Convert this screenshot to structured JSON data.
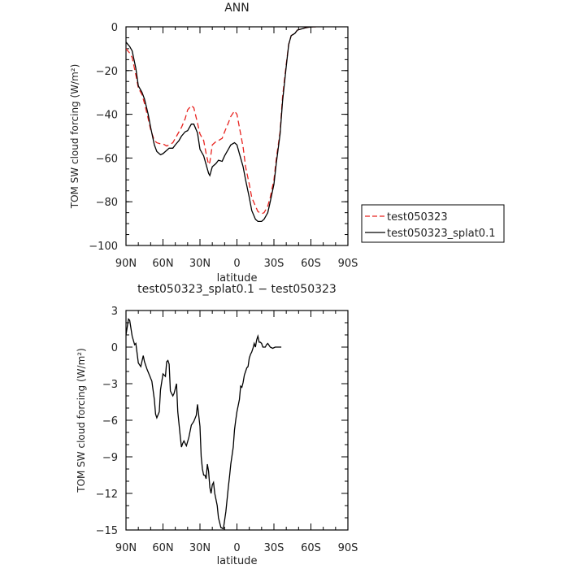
{
  "chart_data": [
    {
      "type": "line",
      "title": "ANN",
      "xlabel": "latitude",
      "ylabel": "TOM SW cloud forcing (W/m²)",
      "xlim": [
        90,
        -90
      ],
      "ylim": [
        -100,
        0
      ],
      "xticks": [
        {
          "value": 90,
          "label": "90N"
        },
        {
          "value": 60,
          "label": "60N"
        },
        {
          "value": 30,
          "label": "30N"
        },
        {
          "value": 0,
          "label": "0"
        },
        {
          "value": -30,
          "label": "30S"
        },
        {
          "value": -60,
          "label": "60S"
        },
        {
          "value": -90,
          "label": "90S"
        }
      ],
      "yticks": [
        {
          "value": 0,
          "label": "0"
        },
        {
          "value": -20,
          "label": "−20"
        },
        {
          "value": -40,
          "label": "−40"
        },
        {
          "value": -60,
          "label": "−60"
        },
        {
          "value": -80,
          "label": "−80"
        },
        {
          "value": -100,
          "label": "−100"
        }
      ],
      "legend_position": "right",
      "series": [
        {
          "name": "test050323",
          "color": "#e8231f",
          "dash": "dashed",
          "points": [
            [
              90,
              -10
            ],
            [
              87,
              -12
            ],
            [
              85,
              -14
            ],
            [
              82,
              -22
            ],
            [
              80,
              -28
            ],
            [
              77,
              -31
            ],
            [
              75,
              -35
            ],
            [
              72,
              -42
            ],
            [
              70,
              -47
            ],
            [
              67,
              -52
            ],
            [
              65,
              -53
            ],
            [
              62,
              -53.5
            ],
            [
              60,
              -53.5
            ],
            [
              57,
              -54.5
            ],
            [
              55,
              -54
            ],
            [
              52,
              -53
            ],
            [
              50,
              -51
            ],
            [
              47,
              -48
            ],
            [
              45,
              -46
            ],
            [
              42,
              -42
            ],
            [
              40,
              -38
            ],
            [
              37,
              -36
            ],
            [
              35,
              -37
            ],
            [
              32,
              -44
            ],
            [
              30,
              -49
            ],
            [
              27,
              -52
            ],
            [
              25,
              -58
            ],
            [
              23,
              -63
            ],
            [
              22,
              -62
            ],
            [
              20,
              -54
            ],
            [
              17,
              -52.5
            ],
            [
              15,
              -52
            ],
            [
              12,
              -51
            ],
            [
              10,
              -48
            ],
            [
              7,
              -44
            ],
            [
              5,
              -41
            ],
            [
              2,
              -38.5
            ],
            [
              0,
              -40
            ],
            [
              -2,
              -46
            ],
            [
              -5,
              -55
            ],
            [
              -7,
              -64
            ],
            [
              -10,
              -72
            ],
            [
              -12,
              -78
            ],
            [
              -15,
              -82
            ],
            [
              -17,
              -84.5
            ],
            [
              -20,
              -85.5
            ],
            [
              -22,
              -85
            ],
            [
              -25,
              -82
            ],
            [
              -27,
              -78
            ],
            [
              -30,
              -70
            ],
            [
              -32,
              -60
            ],
            [
              -35,
              -48
            ],
            [
              -37,
              -32
            ],
            [
              -40,
              -17
            ],
            [
              -42,
              -8
            ],
            [
              -44,
              -4
            ],
            [
              -47,
              -3
            ],
            [
              -49,
              -1.5
            ],
            [
              -52,
              -1
            ],
            [
              -55,
              -0.5
            ],
            [
              -58,
              -0.2
            ],
            [
              -62,
              0
            ],
            [
              -64,
              0
            ]
          ]
        },
        {
          "name": "test050323_splat0.1",
          "color": "#000000",
          "dash": "solid",
          "points": [
            [
              90,
              -7
            ],
            [
              87,
              -9
            ],
            [
              85,
              -11
            ],
            [
              82,
              -19
            ],
            [
              80,
              -27
            ],
            [
              77,
              -30
            ],
            [
              75,
              -33
            ],
            [
              72,
              -40
            ],
            [
              70,
              -46
            ],
            [
              67,
              -54
            ],
            [
              65,
              -57
            ],
            [
              62,
              -58.5
            ],
            [
              60,
              -58
            ],
            [
              57,
              -56.5
            ],
            [
              55,
              -55.5
            ],
            [
              52,
              -55.5
            ],
            [
              50,
              -54
            ],
            [
              47,
              -52
            ],
            [
              45,
              -50
            ],
            [
              42,
              -48
            ],
            [
              40,
              -47.5
            ],
            [
              37,
              -44.5
            ],
            [
              35,
              -44.5
            ],
            [
              32,
              -48.5
            ],
            [
              30,
              -56
            ],
            [
              27,
              -59
            ],
            [
              25,
              -63
            ],
            [
              23,
              -67
            ],
            [
              22,
              -68
            ],
            [
              20,
              -64
            ],
            [
              17,
              -62.5
            ],
            [
              15,
              -61
            ],
            [
              12,
              -61.5
            ],
            [
              10,
              -59
            ],
            [
              7,
              -56
            ],
            [
              5,
              -54
            ],
            [
              2,
              -53
            ],
            [
              0,
              -54
            ],
            [
              -2,
              -58
            ],
            [
              -5,
              -64
            ],
            [
              -7,
              -70
            ],
            [
              -10,
              -78
            ],
            [
              -12,
              -84
            ],
            [
              -15,
              -88
            ],
            [
              -17,
              -89
            ],
            [
              -20,
              -89
            ],
            [
              -22,
              -88
            ],
            [
              -25,
              -85
            ],
            [
              -27,
              -80
            ],
            [
              -30,
              -72
            ],
            [
              -32,
              -62
            ],
            [
              -35,
              -49
            ],
            [
              -37,
              -34
            ],
            [
              -40,
              -18
            ],
            [
              -42,
              -8
            ],
            [
              -44,
              -4
            ],
            [
              -47,
              -3
            ],
            [
              -49,
              -1.5
            ],
            [
              -52,
              -1
            ],
            [
              -55,
              -0.5
            ],
            [
              -58,
              -0.2
            ],
            [
              -62,
              0
            ],
            [
              -64,
              0
            ]
          ]
        }
      ]
    },
    {
      "type": "line",
      "title": "test050323_splat0.1 − test050323",
      "xlabel": "latitude",
      "ylabel": "TOM SW cloud forcing (W/m²)",
      "xlim": [
        90,
        -90
      ],
      "ylim": [
        -15,
        3
      ],
      "xticks": [
        {
          "value": 90,
          "label": "90N"
        },
        {
          "value": 60,
          "label": "60N"
        },
        {
          "value": 30,
          "label": "30N"
        },
        {
          "value": 0,
          "label": "0"
        },
        {
          "value": -30,
          "label": "30S"
        },
        {
          "value": -60,
          "label": "60S"
        },
        {
          "value": -90,
          "label": "90S"
        }
      ],
      "yticks": [
        {
          "value": 3,
          "label": "3"
        },
        {
          "value": 0,
          "label": "0"
        },
        {
          "value": -3,
          "label": "−3"
        },
        {
          "value": -6,
          "label": "−6"
        },
        {
          "value": -9,
          "label": "−9"
        },
        {
          "value": -12,
          "label": "−12"
        },
        {
          "value": -15,
          "label": "−15"
        }
      ],
      "series": [
        {
          "color": "#000000",
          "dash": "solid",
          "points": [
            [
              90,
              1
            ],
            [
              88,
              2.3
            ],
            [
              87,
              2.2
            ],
            [
              85,
              0.9
            ],
            [
              83,
              0.2
            ],
            [
              82,
              0.3
            ],
            [
              80,
              -1.3
            ],
            [
              78,
              -1.6
            ],
            [
              76,
              -0.7
            ],
            [
              75,
              -1.2
            ],
            [
              73,
              -1.8
            ],
            [
              71,
              -2.3
            ],
            [
              69,
              -2.8
            ],
            [
              67,
              -4.3
            ],
            [
              66,
              -5.5
            ],
            [
              65,
              -5.8
            ],
            [
              63,
              -5.3
            ],
            [
              62,
              -3.5
            ],
            [
              60,
              -2.2
            ],
            [
              58,
              -2.4
            ],
            [
              57,
              -1.2
            ],
            [
              56,
              -1.1
            ],
            [
              55,
              -1.4
            ],
            [
              54,
              -3.6
            ],
            [
              52,
              -4
            ],
            [
              51,
              -3.8
            ],
            [
              49,
              -3.0
            ],
            [
              48,
              -5.3
            ],
            [
              46,
              -7.3
            ],
            [
              45,
              -8.2
            ],
            [
              44,
              -7.9
            ],
            [
              43,
              -7.7
            ],
            [
              41,
              -8.1
            ],
            [
              39,
              -7.4
            ],
            [
              37,
              -6.4
            ],
            [
              35,
              -6.1
            ],
            [
              33,
              -5.6
            ],
            [
              32,
              -4.7
            ],
            [
              30,
              -6.5
            ],
            [
              29,
              -9
            ],
            [
              28,
              -10
            ],
            [
              27,
              -10.5
            ],
            [
              26,
              -10.5
            ],
            [
              25,
              -10.8
            ],
            [
              24,
              -9.6
            ],
            [
              23,
              -10.2
            ],
            [
              22,
              -11.5
            ],
            [
              21,
              -12
            ],
            [
              20,
              -11.3
            ],
            [
              19,
              -11.1
            ],
            [
              18,
              -12
            ],
            [
              16,
              -13
            ],
            [
              15,
              -14
            ],
            [
              13,
              -14.8
            ],
            [
              11,
              -14.9
            ],
            [
              10,
              -14.2
            ],
            [
              9,
              -13.5
            ],
            [
              7,
              -11.5
            ],
            [
              6,
              -10.6
            ],
            [
              5,
              -9.6
            ],
            [
              3,
              -8.2
            ],
            [
              2,
              -6.8
            ],
            [
              1,
              -6.0
            ],
            [
              0,
              -5.3
            ],
            [
              -2,
              -4.3
            ],
            [
              -3,
              -3.2
            ],
            [
              -4,
              -3.3
            ],
            [
              -5,
              -2.9
            ],
            [
              -6,
              -2.3
            ],
            [
              -7,
              -2.0
            ],
            [
              -8,
              -1.7
            ],
            [
              -9,
              -1.6
            ],
            [
              -10,
              -0.9
            ],
            [
              -11,
              -0.6
            ],
            [
              -12,
              -0.4
            ],
            [
              -13,
              -0.1
            ],
            [
              -14,
              0.3
            ],
            [
              -15,
              0.0
            ],
            [
              -16,
              0.6
            ],
            [
              -17,
              0.9
            ],
            [
              -18,
              0.4
            ],
            [
              -19,
              0.4
            ],
            [
              -20,
              0.3
            ],
            [
              -21,
              0.0
            ],
            [
              -22,
              0.0
            ],
            [
              -23,
              0.0
            ],
            [
              -24,
              0.2
            ],
            [
              -25,
              0.3
            ],
            [
              -27,
              0.0
            ],
            [
              -29,
              -0.1
            ],
            [
              -31,
              0.0
            ],
            [
              -33,
              0.0
            ],
            [
              -35,
              0.0
            ],
            [
              -36,
              0.0
            ]
          ]
        }
      ]
    }
  ]
}
